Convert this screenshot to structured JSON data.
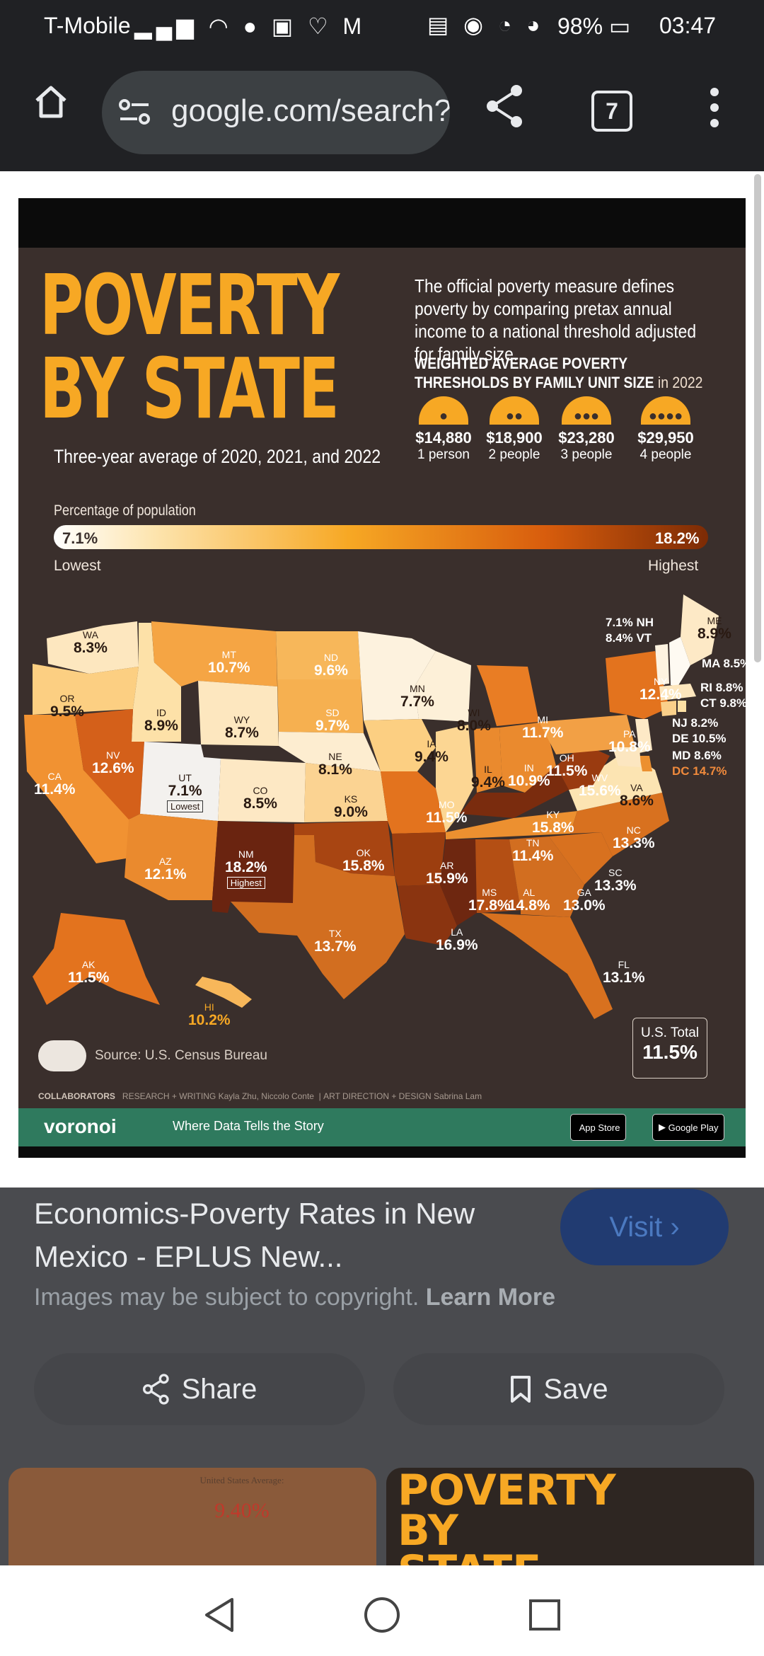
{
  "status_bar": {
    "carrier": "T-Mobile",
    "battery": "98%",
    "time": "03:47",
    "left_icons": [
      "signal-icon",
      "wifi-icon",
      "chat-icon",
      "photo-icon",
      "heart-icon",
      "mail-icon"
    ],
    "right_icons": [
      "work-icon",
      "eye-icon",
      "alarm-icon",
      "speed-icon",
      "battery-icon"
    ]
  },
  "browser": {
    "url": "google.com/search?q",
    "tab_count": "7"
  },
  "infographic": {
    "title_line1": "POVERTY",
    "title_line2": "BY STATE",
    "subtitle": "Three-year average of 2020, 2021, and 2022",
    "description": "The official poverty measure defines poverty by comparing pretax annual income to a national threshold adjusted for family size.",
    "thresholds_heading": "WEIGHTED AVERAGE POVERTY THRESHOLDS BY FAMILY UNIT SIZE",
    "thresholds_year": "in 2022",
    "thresholds": [
      {
        "amount": "$14,880",
        "label": "1 person"
      },
      {
        "amount": "$18,900",
        "label": "2 people"
      },
      {
        "amount": "$23,280",
        "label": "3 people"
      },
      {
        "amount": "$29,950",
        "label": "4 people"
      }
    ],
    "legend": {
      "title": "Percentage of population",
      "min": "7.1%",
      "max": "18.2%",
      "min_label": "Lowest",
      "max_label": "Highest"
    },
    "states": [
      {
        "abbr": "WA",
        "value": "8.3%"
      },
      {
        "abbr": "OR",
        "value": "9.5%"
      },
      {
        "abbr": "CA",
        "value": "11.4%"
      },
      {
        "abbr": "ID",
        "value": "8.9%"
      },
      {
        "abbr": "NV",
        "value": "12.6%"
      },
      {
        "abbr": "MT",
        "value": "10.7%"
      },
      {
        "abbr": "WY",
        "value": "8.7%"
      },
      {
        "abbr": "UT",
        "value": "7.1%",
        "tag": "Lowest"
      },
      {
        "abbr": "AZ",
        "value": "12.1%"
      },
      {
        "abbr": "CO",
        "value": "8.5%"
      },
      {
        "abbr": "NM",
        "value": "18.2%",
        "tag": "Highest"
      },
      {
        "abbr": "ND",
        "value": "9.6%"
      },
      {
        "abbr": "SD",
        "value": "9.7%"
      },
      {
        "abbr": "NE",
        "value": "8.1%"
      },
      {
        "abbr": "KS",
        "value": "9.0%"
      },
      {
        "abbr": "OK",
        "value": "15.8%"
      },
      {
        "abbr": "TX",
        "value": "13.7%"
      },
      {
        "abbr": "MN",
        "value": "7.7%"
      },
      {
        "abbr": "IA",
        "value": "9.4%"
      },
      {
        "abbr": "MO",
        "value": "11.5%"
      },
      {
        "abbr": "AR",
        "value": "15.9%"
      },
      {
        "abbr": "LA",
        "value": "16.9%"
      },
      {
        "abbr": "WI",
        "value": "8.0%"
      },
      {
        "abbr": "IL",
        "value": "9.4%"
      },
      {
        "abbr": "MI",
        "value": "11.7%"
      },
      {
        "abbr": "IN",
        "value": "10.9%"
      },
      {
        "abbr": "OH",
        "value": "11.5%"
      },
      {
        "abbr": "KY",
        "value": "15.8%"
      },
      {
        "abbr": "TN",
        "value": "11.4%"
      },
      {
        "abbr": "MS",
        "value": "17.8%"
      },
      {
        "abbr": "AL",
        "value": "14.8%"
      },
      {
        "abbr": "GA",
        "value": "13.0%"
      },
      {
        "abbr": "FL",
        "value": "13.1%"
      },
      {
        "abbr": "SC",
        "value": "13.3%"
      },
      {
        "abbr": "NC",
        "value": "13.3%"
      },
      {
        "abbr": "VA",
        "value": "8.6%"
      },
      {
        "abbr": "WV",
        "value": "15.6%"
      },
      {
        "abbr": "PA",
        "value": "10.8%"
      },
      {
        "abbr": "NY",
        "value": "12.4%"
      },
      {
        "abbr": "ME",
        "value": "8.9%"
      },
      {
        "abbr": "AK",
        "value": "11.5%"
      },
      {
        "abbr": "HI",
        "value": "10.2%"
      }
    ],
    "side_states": [
      {
        "text": "7.1% NH"
      },
      {
        "text": "8.4% VT"
      },
      {
        "text": "MA 8.5%"
      },
      {
        "text": "RI 8.8%"
      },
      {
        "text": "CT 9.8%"
      },
      {
        "text": "NJ 8.2%"
      },
      {
        "text": "DE 10.5%"
      },
      {
        "text": "MD 8.6%"
      },
      {
        "text": "DC 14.7%"
      }
    ],
    "us_total_label": "U.S. Total",
    "us_total_value": "11.5%",
    "source": "Source: U.S. Census Bureau",
    "collaborators": "COLLABORATORS",
    "research": "RESEARCH + WRITING Kayla Zhu, Niccolo Conte",
    "art_direction": "ART DIRECTION + DESIGN Sabrina Lam",
    "brand": "voronoi",
    "tagline": "Where Data Tells the Story",
    "app_store": "App Store",
    "google_play": "Google Play"
  },
  "result": {
    "title": "Economics-Poverty Rates in New Mexico - EPLUS New...",
    "visit_label": "Visit",
    "copyright_text": "Images may be subject to copyright.",
    "learn_more": "Learn More",
    "share_label": "Share",
    "save_label": "Save",
    "thumb1_text": "United States Average:",
    "thumb1_value": "9.40%",
    "thumb2_text": "POVERTY BY STATE"
  },
  "colors": {
    "accent": "#f7a824",
    "visit_bg": "#213b71",
    "footer_green": "#2f7a5e"
  }
}
